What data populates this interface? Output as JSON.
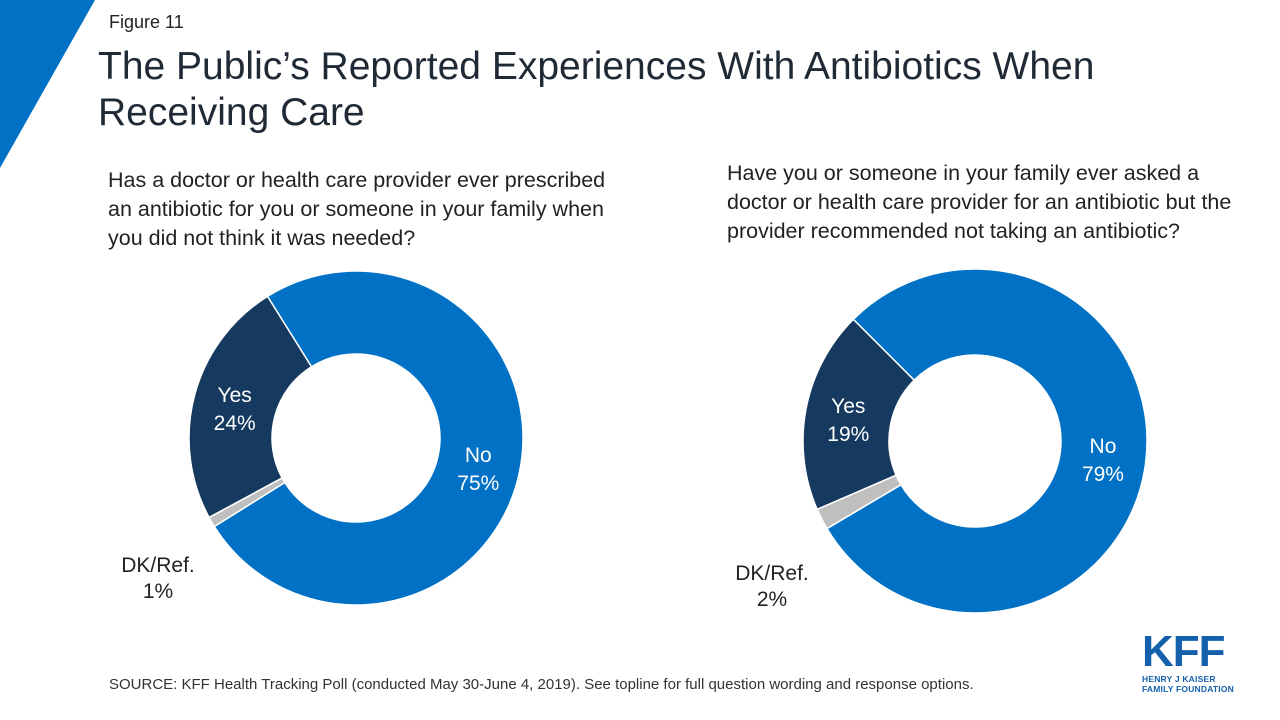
{
  "figure_label": "Figure 11",
  "title": "The Public’s Reported Experiences With Antibiotics When Receiving Care",
  "colors": {
    "yes": "#163a5f",
    "no": "#0071c5",
    "dk": "#bfbfbf",
    "accent": "#0071c5"
  },
  "chart_data": [
    {
      "type": "pie",
      "style": "donut",
      "title": "Has a doctor or health care provider ever prescribed an antibiotic for you or someone in your family when you did not think it was needed?",
      "categories": [
        "No",
        "Yes",
        "DK/Ref."
      ],
      "values": [
        75,
        24,
        1
      ],
      "labels": [
        "No\n75%",
        "Yes\n24%",
        "DK/Ref.\n1%"
      ],
      "colors": [
        "#0071c5",
        "#163a5f",
        "#bfbfbf"
      ]
    },
    {
      "type": "pie",
      "style": "donut",
      "title": "Have you or someone in your family ever asked a doctor or health care provider for an antibiotic but the provider recommended not taking an antibiotic?",
      "categories": [
        "No",
        "Yes",
        "DK/Ref."
      ],
      "values": [
        79,
        19,
        2
      ],
      "labels": [
        "No\n79%",
        "Yes\n19%",
        "DK/Ref.\n2%"
      ],
      "colors": [
        "#0071c5",
        "#163a5f",
        "#bfbfbf"
      ]
    }
  ],
  "source": "SOURCE: KFF Health Tracking Poll (conducted May 30-June 4, 2019). See topline for full question wording and response options.",
  "logo": {
    "main": "KFF",
    "line1": "HENRY J KAISER",
    "line2": "FAMILY FOUNDATION"
  }
}
